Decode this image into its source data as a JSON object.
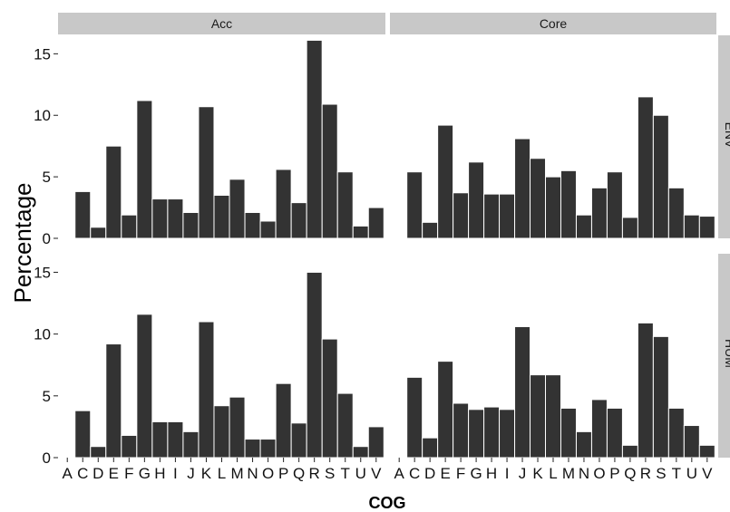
{
  "chart_data": {
    "type": "bar",
    "xlabel": "COG",
    "ylabel": "Percentage",
    "ylim": [
      0,
      16.5
    ],
    "yticks": [
      0,
      5,
      10,
      15
    ],
    "columns": [
      "Acc",
      "Core"
    ],
    "rows": [
      "ENV",
      "HUM"
    ],
    "categories": [
      "A",
      "C",
      "D",
      "E",
      "F",
      "G",
      "H",
      "I",
      "J",
      "K",
      "L",
      "M",
      "N",
      "O",
      "P",
      "Q",
      "R",
      "S",
      "T",
      "U",
      "V"
    ],
    "panels": [
      {
        "column": "Acc",
        "row": "ENV",
        "values": [
          0.05,
          3.8,
          0.9,
          7.5,
          1.9,
          11.2,
          3.2,
          3.2,
          2.1,
          10.7,
          3.5,
          4.8,
          2.1,
          1.4,
          5.6,
          2.9,
          16.1,
          10.9,
          5.4,
          1.0,
          2.5
        ]
      },
      {
        "column": "Core",
        "row": "ENV",
        "values": [
          0,
          5.4,
          1.3,
          9.2,
          3.7,
          6.2,
          3.6,
          3.6,
          8.1,
          6.5,
          5.0,
          5.5,
          1.9,
          4.1,
          5.4,
          1.7,
          11.5,
          10.0,
          4.1,
          1.9,
          1.8
        ]
      },
      {
        "column": "Acc",
        "row": "HUM",
        "values": [
          0.05,
          3.8,
          0.9,
          9.2,
          1.8,
          11.6,
          2.9,
          2.9,
          2.1,
          11.0,
          4.2,
          4.9,
          1.5,
          1.5,
          6.0,
          2.8,
          15.0,
          9.6,
          5.2,
          0.9,
          2.5
        ]
      },
      {
        "column": "Core",
        "row": "HUM",
        "values": [
          0,
          6.5,
          1.6,
          7.8,
          4.4,
          3.9,
          4.1,
          3.9,
          10.6,
          6.7,
          6.7,
          4.0,
          2.1,
          4.7,
          4.0,
          1.0,
          10.9,
          9.8,
          4.0,
          2.6,
          1.0
        ]
      }
    ],
    "colors": {
      "bar": "#333333",
      "bar_outline": "#ffffff",
      "panel_bg": "#ffffff",
      "strip_bg": "#c8c8c8"
    },
    "grid": false,
    "legend": "none"
  }
}
